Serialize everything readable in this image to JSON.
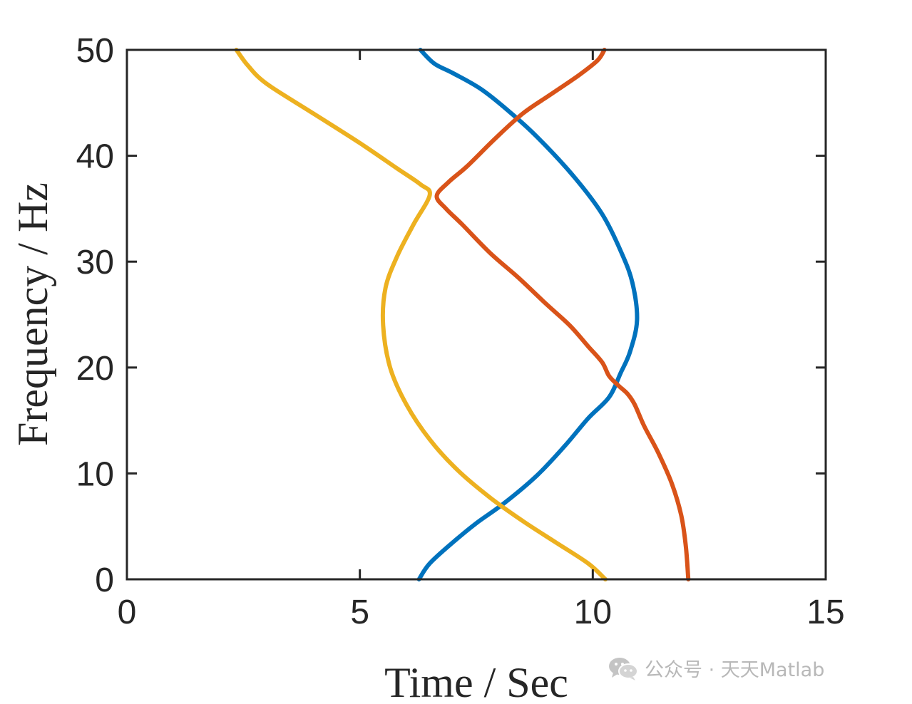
{
  "chart_data": {
    "type": "line",
    "title": "",
    "xlabel": "Time / Sec",
    "ylabel": "Frequency / Hz",
    "xlim": [
      0,
      15
    ],
    "ylim": [
      0,
      50
    ],
    "xticks": [
      0,
      5,
      10,
      15
    ],
    "yticks": [
      0,
      10,
      20,
      30,
      40,
      50
    ],
    "xtick_labels": [
      "0",
      "5",
      "10",
      "15"
    ],
    "ytick_labels": [
      "0",
      "10",
      "20",
      "30",
      "40",
      "50"
    ],
    "grid": false,
    "legend": "none",
    "series": [
      {
        "color": "#0072BD",
        "points": [
          [
            6.27,
            0
          ],
          [
            6.5,
            1.5
          ],
          [
            7.0,
            3.5
          ],
          [
            7.5,
            5.3
          ],
          [
            8.1,
            7.2
          ],
          [
            8.8,
            9.8
          ],
          [
            9.4,
            12.6
          ],
          [
            9.9,
            15.2
          ],
          [
            10.35,
            17.2
          ],
          [
            10.6,
            19.5
          ],
          [
            10.8,
            21.5
          ],
          [
            10.95,
            24.5
          ],
          [
            10.85,
            28.0
          ],
          [
            10.6,
            31.0
          ],
          [
            10.2,
            34.5
          ],
          [
            9.6,
            38.0
          ],
          [
            8.8,
            41.8
          ],
          [
            8.2,
            44.2
          ],
          [
            7.6,
            46.3
          ],
          [
            7.0,
            47.8
          ],
          [
            6.6,
            48.7
          ],
          [
            6.3,
            50.0
          ]
        ]
      },
      {
        "color": "#D95319",
        "points": [
          [
            12.05,
            0
          ],
          [
            12.0,
            3.0
          ],
          [
            11.9,
            6.0
          ],
          [
            11.7,
            9.0
          ],
          [
            11.4,
            12.0
          ],
          [
            11.1,
            14.5
          ],
          [
            10.9,
            16.5
          ],
          [
            10.75,
            17.5
          ],
          [
            10.55,
            18.3
          ],
          [
            10.35,
            19.2
          ],
          [
            10.2,
            20.5
          ],
          [
            9.9,
            22.0
          ],
          [
            9.5,
            24.0
          ],
          [
            9.0,
            26.0
          ],
          [
            8.4,
            28.5
          ],
          [
            7.8,
            30.8
          ],
          [
            7.2,
            33.5
          ],
          [
            6.85,
            35.0
          ],
          [
            6.65,
            36.2
          ],
          [
            6.9,
            37.5
          ],
          [
            7.3,
            39.0
          ],
          [
            7.9,
            41.6
          ],
          [
            8.5,
            44.0
          ],
          [
            9.1,
            45.8
          ],
          [
            9.7,
            47.6
          ],
          [
            10.1,
            49.0
          ],
          [
            10.25,
            50.0
          ]
        ]
      },
      {
        "color": "#EDB120",
        "points": [
          [
            10.27,
            0
          ],
          [
            9.9,
            1.5
          ],
          [
            9.2,
            3.5
          ],
          [
            8.5,
            5.5
          ],
          [
            7.8,
            7.7
          ],
          [
            7.1,
            10.3
          ],
          [
            6.5,
            13.2
          ],
          [
            6.0,
            16.5
          ],
          [
            5.65,
            20.0
          ],
          [
            5.5,
            24.0
          ],
          [
            5.55,
            27.5
          ],
          [
            5.8,
            30.5
          ],
          [
            6.15,
            33.5
          ],
          [
            6.5,
            36.3
          ],
          [
            6.3,
            37.3
          ],
          [
            5.8,
            38.8
          ],
          [
            5.0,
            41.2
          ],
          [
            4.0,
            44.0
          ],
          [
            3.0,
            46.8
          ],
          [
            2.6,
            48.5
          ],
          [
            2.35,
            50.0
          ]
        ]
      }
    ]
  },
  "watermark": {
    "icon": "wechat-icon",
    "text": "公众号 · 天天Matlab"
  }
}
